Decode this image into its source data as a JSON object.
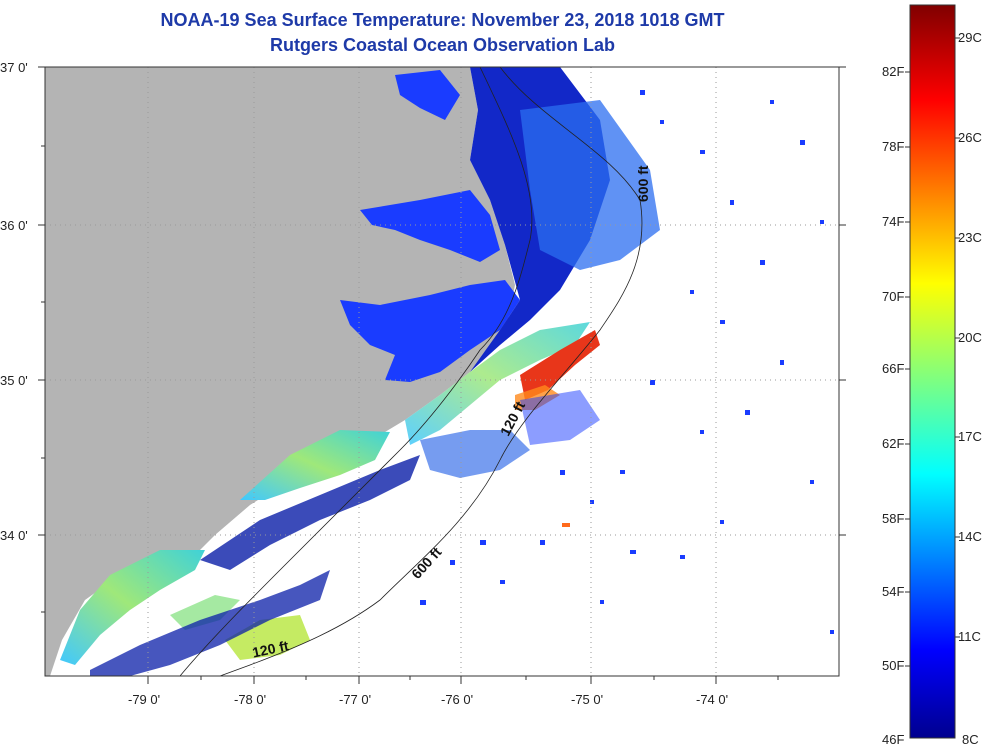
{
  "title": {
    "line1": "NOAA-19 Sea Surface Temperature:  November 23, 2018 1018 GMT",
    "line2": "Rutgers Coastal Ocean Observation Lab"
  },
  "map": {
    "lat_labels": [
      "37 0'",
      "36 0'",
      "35 0'",
      "34 0'"
    ],
    "lon_labels": [
      "-79 0'",
      "-78 0'",
      "-77 0'",
      "-76 0'",
      "-75 0'",
      "-74 0'"
    ],
    "contour_labels": [
      "600 ft",
      "120 ft",
      "600 ft",
      "120 ft"
    ],
    "land_color": "#b4b4b4"
  },
  "colorbar": {
    "fahrenheit_labels": [
      "82F",
      "78F",
      "74F",
      "70F",
      "66F",
      "62F",
      "58F",
      "54F",
      "50F",
      "46F"
    ],
    "celsius_labels": [
      "29C",
      "26C",
      "23C",
      "20C",
      "17C",
      "14C",
      "11C",
      "8C"
    ],
    "range_c": [
      8,
      29.5
    ],
    "range_f": [
      46,
      85
    ]
  }
}
